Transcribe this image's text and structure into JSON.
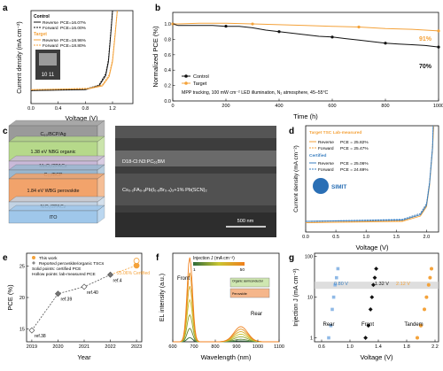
{
  "colors": {
    "orange": "#f4a23a",
    "black": "#111111",
    "gray": "#888888",
    "blue": "#3a7fc0",
    "lightblue": "#8fb9e6",
    "dark": "#222222"
  },
  "panels": {
    "a": {
      "letter": "a",
      "xlabel": "Voltage (V)",
      "ylabel": "Current density (mA cm⁻²)",
      "legend": {
        "groups": [
          {
            "title": "Control",
            "items": [
              {
                "label": "Reverse",
                "pce": "PCE=16.07%",
                "style": "solid"
              },
              {
                "label": "Forward",
                "pce": "PCE=16.00%",
                "style": "dash"
              }
            ]
          },
          {
            "title": "Target",
            "items": [
              {
                "label": "Reverse",
                "pce": "PCE=18.96%",
                "style": "solid"
              },
              {
                "label": "Forward",
                "pce": "PCE=18.80%",
                "style": "dash"
              }
            ]
          }
        ]
      },
      "photo_text": "10 11",
      "chart_data": {
        "type": "line",
        "xlim": [
          0,
          1.5
        ],
        "ylim": [
          -2,
          0
        ],
        "xticks": [
          0,
          0.4,
          0.8,
          1.2
        ],
        "yticks": [],
        "series": [
          {
            "name": "Control Reverse",
            "x": [
              0,
              0.8,
              1.0,
              1.1,
              1.14,
              1.18,
              1.2
            ],
            "y": [
              -1.72,
              -1.7,
              -1.62,
              -1.4,
              -1.1,
              -0.4,
              0
            ]
          },
          {
            "name": "Control Forward",
            "x": [
              0,
              0.8,
              1.0,
              1.1,
              1.14,
              1.18,
              1.2
            ],
            "y": [
              -1.72,
              -1.69,
              -1.6,
              -1.36,
              -1.05,
              -0.35,
              0
            ]
          },
          {
            "name": "Target Reverse",
            "x": [
              0,
              0.85,
              1.05,
              1.15,
              1.2,
              1.24,
              1.27
            ],
            "y": [
              -1.7,
              -1.68,
              -1.62,
              -1.42,
              -1.1,
              -0.5,
              0
            ]
          },
          {
            "name": "Target Forward",
            "x": [
              0,
              0.85,
              1.05,
              1.15,
              1.2,
              1.24,
              1.27
            ],
            "y": [
              -1.7,
              -1.67,
              -1.6,
              -1.38,
              -1.05,
              -0.45,
              0
            ]
          }
        ]
      }
    },
    "b": {
      "letter": "b",
      "xlabel": "Time (h)",
      "ylabel": "Normalized PCE (%)",
      "legend": [
        {
          "label": "Control"
        },
        {
          "label": "Target"
        }
      ],
      "note": "MPP tracking, 100 mW cm⁻² LED illumination, N₂ atmosphere, 45–55°C",
      "end_labels": [
        {
          "text": "91%"
        },
        {
          "text": "70%"
        }
      ],
      "chart_data": {
        "type": "line",
        "xlim": [
          0,
          1000
        ],
        "ylim": [
          0.0,
          1.15
        ],
        "xticks": [
          0,
          200,
          400,
          600,
          800,
          1000
        ],
        "yticks": [
          0.0,
          0.2,
          0.4,
          0.6,
          0.8,
          1.0
        ],
        "series": [
          {
            "name": "Control",
            "x": [
              0,
              20,
              100,
              150,
              200,
              250,
              300,
              350,
              400,
              450,
              500,
              550,
              600,
              650,
              700,
              750,
              800,
              850,
              900,
              950,
              1000
            ],
            "y": [
              1.0,
              0.98,
              0.98,
              0.98,
              0.97,
              0.97,
              0.95,
              0.92,
              0.9,
              0.88,
              0.86,
              0.84,
              0.83,
              0.81,
              0.79,
              0.77,
              0.75,
              0.74,
              0.73,
              0.72,
              0.7
            ]
          },
          {
            "name": "Target",
            "x": [
              0,
              20,
              100,
              200,
              300,
              400,
              500,
              600,
              700,
              800,
              900,
              1000
            ],
            "y": [
              1.0,
              1.0,
              1.01,
              1.01,
              1.0,
              0.99,
              0.98,
              0.97,
              0.96,
              0.94,
              0.93,
              0.91
            ]
          }
        ]
      }
    },
    "c": {
      "letter": "c",
      "layers": [
        {
          "label": "C₆₀/BCP/Ag",
          "color": "#9a9a9a"
        },
        {
          "label": "1.38 eV NBG organic",
          "color": "#b6d98a"
        },
        {
          "label": "MoOₓ/2PACz",
          "color": "#c9b9d8"
        },
        {
          "label": "C₆₀/BCP",
          "color": "#9ab7cf"
        },
        {
          "label": "1.84 eV WBG perovskite",
          "color": "#f2a36b"
        },
        {
          "label": "NiOₓ/2PACz",
          "color": "#c2d3e4"
        },
        {
          "label": "ITO",
          "color": "#9fc7ea"
        }
      ],
      "sem": {
        "top_label": "D18-Cl:N3:PC₆₁BM",
        "mid_label": "Cs₀.₂FA₀.₈Pb(I₀.₆Br₀.₄)₃+1% Pb(SCN)₂",
        "scale": "500 nm"
      }
    },
    "d": {
      "letter": "d",
      "xlabel": "Voltage (V)",
      "ylabel": "Current density (mA cm⁻²)",
      "legend": {
        "lab_title": "Target TSC Lab-measured",
        "lab": [
          {
            "label": "Reverse",
            "pce": "PCE = 25.82%"
          },
          {
            "label": "Forward",
            "pce": "PCE = 25.47%"
          }
        ],
        "cert_title": "Certified",
        "cert": [
          {
            "label": "Reverse",
            "pce": "PCE = 25.06%"
          },
          {
            "label": "Forward",
            "pce": "PCE = 24.69%"
          }
        ]
      },
      "logo_text": "SIMIT",
      "chart_data": {
        "type": "line",
        "xlim": [
          0,
          2.2
        ],
        "ylim": [
          -16,
          0
        ],
        "xticks": [
          0.0,
          0.5,
          1.0,
          1.5,
          2.0
        ],
        "yticks": [],
        "series": [
          {
            "name": "Lab Reverse",
            "x": [
              0,
              1.6,
              1.9,
              2.0,
              2.05,
              2.1,
              2.12
            ],
            "y": [
              -14.6,
              -14.4,
              -13.6,
              -12.2,
              -9.0,
              -3.5,
              0
            ]
          },
          {
            "name": "Lab Forward",
            "x": [
              0,
              1.6,
              1.9,
              2.0,
              2.05,
              2.1,
              2.12
            ],
            "y": [
              -14.6,
              -14.3,
              -13.4,
              -11.9,
              -8.7,
              -3.2,
              0
            ]
          },
          {
            "name": "Certified Reverse",
            "x": [
              0,
              1.6,
              1.9,
              2.0,
              2.05,
              2.1,
              2.11
            ],
            "y": [
              -14.4,
              -14.2,
              -13.4,
              -12.0,
              -8.8,
              -3.4,
              0
            ]
          },
          {
            "name": "Certified Forward",
            "x": [
              0,
              1.6,
              1.9,
              2.0,
              2.05,
              2.1,
              2.11
            ],
            "y": [
              -14.4,
              -14.1,
              -13.2,
              -11.7,
              -8.5,
              -3.1,
              0
            ]
          }
        ]
      }
    },
    "e": {
      "letter": "e",
      "xlabel": "Year",
      "ylabel": "PCE (%)",
      "legend": [
        "This work",
        "Reported perovskite/organic TSCs",
        "Solid points: certified PCE",
        "Hollow points: lab-measured PCE"
      ],
      "point_labels": [
        {
          "text": "ref.38"
        },
        {
          "text": "ref.39"
        },
        {
          "text": "ref.40"
        },
        {
          "text": "ref.4"
        },
        {
          "text": "25.06%\nCertified"
        }
      ],
      "chart_data": {
        "type": "scatter",
        "xlim": [
          2018.8,
          2023.2
        ],
        "ylim": [
          13,
          27
        ],
        "xticks": [
          2019,
          2020,
          2021,
          2022,
          2023
        ],
        "yticks": [
          15,
          20,
          25
        ],
        "series": [
          {
            "name": "Reported perovskite/organic TSCs",
            "x": [
              2019,
              2020,
              2021,
              2022
            ],
            "y": [
              14.8,
              20.6,
              21.7,
              23.6
            ],
            "certified": [
              false,
              true,
              false,
              true
            ]
          },
          {
            "name": "This work",
            "x": [
              2023,
              2023
            ],
            "y": [
              25.06,
              25.8
            ],
            "certified": [
              true,
              false
            ]
          }
        ]
      }
    },
    "f": {
      "letter": "f",
      "xlabel": "Wavelength (nm)",
      "ylabel": "EL intensity (a.u.)",
      "colorbar": {
        "title": "Injection J (mA cm⁻²)",
        "min": "1",
        "max": "50"
      },
      "labels": {
        "front": "Front",
        "rear": "Rear"
      },
      "inset": {
        "top": "Organic semiconductor",
        "bottom": "Perovskite"
      },
      "chart_data": {
        "type": "line",
        "xlim": [
          600,
          1100
        ],
        "ylim": [
          0,
          1.05
        ],
        "xticks": [
          600,
          700,
          800,
          900,
          1000,
          1100
        ],
        "yticks": [],
        "series_j": [
          1,
          5,
          10,
          20,
          30,
          40,
          50
        ],
        "peaks": {
          "front_center": 680,
          "front_width": 18,
          "rear_center": 920,
          "rear_width": 45,
          "front_amps": [
            0.05,
            0.16,
            0.32,
            0.5,
            0.66,
            0.82,
            1.0
          ],
          "rear_amps": [
            0.01,
            0.03,
            0.06,
            0.09,
            0.12,
            0.15,
            0.18
          ]
        }
      }
    },
    "g": {
      "letter": "g",
      "xlabel": "Voltage (V)",
      "ylabel": "Injection J (mA cm⁻²)",
      "group_labels": [
        {
          "text": "Rear"
        },
        {
          "text": "Front"
        },
        {
          "text": "Tandem"
        }
      ],
      "voltage_labels": [
        {
          "text": "0.80 V"
        },
        {
          "text": "1.32 V"
        },
        {
          "text": "2.12 V"
        }
      ],
      "chart_data": {
        "type": "scatter",
        "log_y": true,
        "xlim": [
          0.5,
          2.25
        ],
        "ylim": [
          0.8,
          120
        ],
        "xticks": [
          0.6,
          0.8,
          1.0,
          1.2,
          1.4,
          1.6,
          1.8,
          2.0,
          2.2
        ],
        "yticks": [
          1,
          10,
          100
        ],
        "band_y": [
          16,
          24
        ],
        "series": [
          {
            "name": "Rear",
            "x": [
              0.7,
              0.73,
              0.75,
              0.77,
              0.79,
              0.81,
              0.83
            ],
            "y": [
              1,
              2,
              5,
              10,
              20,
              30,
              50
            ]
          },
          {
            "name": "Front",
            "x": [
              1.22,
              1.26,
              1.29,
              1.31,
              1.33,
              1.35,
              1.37
            ],
            "y": [
              1,
              2,
              5,
              10,
              20,
              30,
              50
            ]
          },
          {
            "name": "Tandem",
            "x": [
              1.95,
              2.0,
              2.05,
              2.08,
              2.11,
              2.13,
              2.15
            ],
            "y": [
              1,
              2,
              5,
              10,
              20,
              30,
              50
            ]
          }
        ]
      }
    }
  }
}
